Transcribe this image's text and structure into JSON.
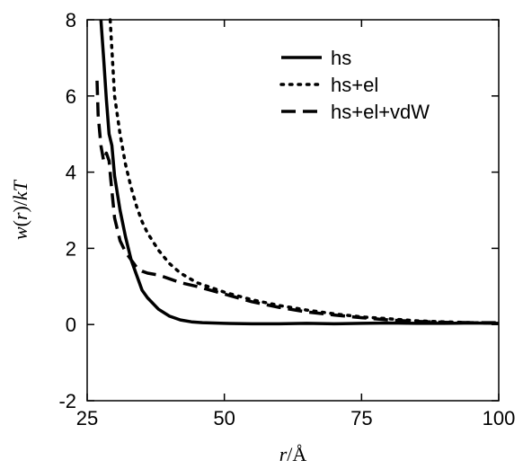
{
  "chart_data": {
    "type": "line",
    "xlabel": "r/Å",
    "ylabel": "w(r)/kT",
    "xlim": [
      25,
      100
    ],
    "ylim": [
      -2,
      8
    ],
    "xticks": [
      25,
      50,
      75,
      100
    ],
    "yticks": [
      -2,
      0,
      2,
      4,
      6,
      8
    ],
    "grid": false,
    "legend_position": "top-right",
    "series": [
      {
        "name": "hs",
        "dash": "solid",
        "x": [
          27.5,
          28.0,
          28.5,
          29.0,
          29.5,
          30.0,
          31.0,
          32.0,
          33.0,
          34.0,
          35.0,
          36.0,
          38.0,
          40.0,
          42.0,
          44.0,
          46.0,
          50.0,
          55.0,
          60.0,
          65.0,
          70.0,
          75.0,
          80.0,
          85.0,
          90.0,
          95.0,
          100.0
        ],
        "y": [
          8.0,
          7.0,
          5.9,
          5.0,
          4.7,
          3.9,
          3.0,
          2.3,
          1.7,
          1.3,
          0.9,
          0.7,
          0.4,
          0.22,
          0.12,
          0.07,
          0.05,
          0.03,
          0.02,
          0.02,
          0.03,
          0.02,
          0.03,
          0.04,
          0.03,
          0.03,
          0.04,
          0.03
        ]
      },
      {
        "name": "hs+el",
        "dash": "dot",
        "x": [
          29.2,
          30.0,
          31.0,
          32.0,
          33.0,
          34.0,
          35.0,
          36.0,
          38.0,
          40.0,
          42.0,
          45.0,
          50.0,
          55.0,
          60.0,
          65.0,
          70.0,
          75.0,
          80.0,
          85.0,
          90.0,
          95.0,
          100.0
        ],
        "y": [
          8.0,
          6.0,
          5.0,
          4.2,
          3.6,
          3.1,
          2.7,
          2.4,
          1.95,
          1.6,
          1.35,
          1.1,
          0.85,
          0.65,
          0.5,
          0.38,
          0.28,
          0.2,
          0.15,
          0.1,
          0.07,
          0.05,
          0.03
        ]
      },
      {
        "name": "hs+el+vdW",
        "dash": "dash",
        "x": [
          26.8,
          27.0,
          27.5,
          28.0,
          28.5,
          29.0,
          29.3,
          30.0,
          31.0,
          32.0,
          33.0,
          34.0,
          35.0,
          36.0,
          38.0,
          40.0,
          42.0,
          45.0,
          50.0,
          55.0,
          60.0,
          65.0,
          70.0,
          75.0,
          80.0,
          85.0,
          90.0,
          95.0,
          100.0
        ],
        "y": [
          6.4,
          5.5,
          4.7,
          4.3,
          4.5,
          4.3,
          3.8,
          2.8,
          2.2,
          1.9,
          1.7,
          1.5,
          1.4,
          1.35,
          1.3,
          1.2,
          1.1,
          1.0,
          0.8,
          0.6,
          0.45,
          0.33,
          0.25,
          0.18,
          0.12,
          0.08,
          0.06,
          0.05,
          0.05
        ]
      }
    ]
  }
}
